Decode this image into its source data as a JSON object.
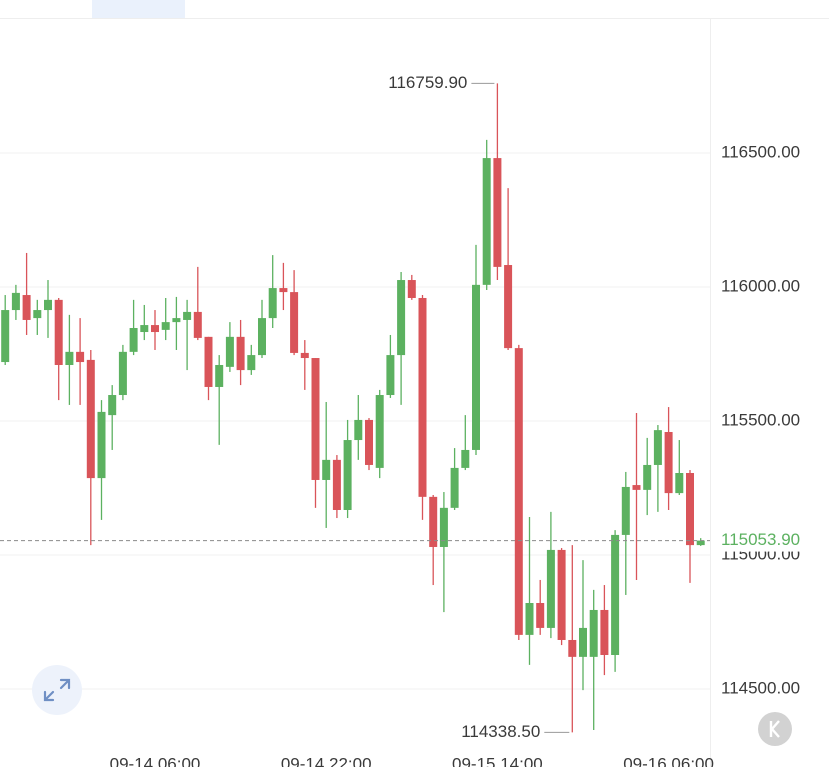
{
  "chart_data": {
    "type": "candlestick",
    "categories": [
      null,
      null,
      null,
      null,
      null,
      null,
      null,
      null,
      null,
      null,
      null,
      null,
      null,
      null,
      "09-14 06:00",
      null,
      null,
      null,
      null,
      null,
      null,
      null,
      null,
      null,
      null,
      null,
      null,
      null,
      null,
      null,
      "09-14 22:00",
      null,
      null,
      null,
      null,
      null,
      null,
      null,
      null,
      null,
      null,
      null,
      null,
      null,
      null,
      null,
      "09-15 14:00",
      null,
      null,
      null,
      null,
      null,
      null,
      null,
      null,
      null,
      null,
      null,
      null,
      null,
      null,
      null,
      "09-16 06:00",
      null,
      null,
      null
    ],
    "open": [
      115720,
      115914,
      115970,
      115884,
      115914,
      115952,
      115709,
      115758,
      115728,
      115287,
      115522,
      115597,
      115758,
      115832,
      115858,
      115840,
      115869,
      115877,
      115907,
      115814,
      115627,
      115702,
      115814,
      115690,
      115746,
      115884,
      115996,
      115981,
      115754,
      115735,
      115280,
      115355,
      115168,
      115429,
      115504,
      115325,
      115597,
      115746,
      116026,
      115959,
      115217,
      115030,
      115176,
      115325,
      115392,
      116008,
      116481,
      116082,
      115772,
      114702,
      114821,
      114728,
      115019,
      114683,
      114620,
      114620,
      114795,
      114627,
      115075,
      115261,
      115243,
      115336,
      115459,
      115231,
      115306,
      115037
    ],
    "high": [
      115970,
      116008,
      116127,
      115952,
      116026,
      115959,
      115896,
      115884,
      115765,
      115578,
      115634,
      115784,
      115952,
      115933,
      115914,
      115959,
      115963,
      115952,
      116075,
      115814,
      115746,
      115869,
      115877,
      115784,
      115952,
      116119,
      116090,
      116063,
      115802,
      115735,
      115571,
      115373,
      115504,
      115597,
      115511,
      115616,
      115821,
      116056,
      116045,
      115970,
      115224,
      115235,
      115399,
      115522,
      116157,
      116549,
      116759.9,
      116369,
      115784,
      115142,
      114907,
      115161,
      115026,
      115037,
      114981,
      114870,
      114888,
      115093,
      115310,
      115530,
      115437,
      115485,
      115552,
      115429,
      115317,
      115063
    ],
    "low": [
      115709,
      115877,
      115821,
      115821,
      115810,
      115578,
      115560,
      115560,
      115037,
      115131,
      115392,
      115578,
      115746,
      115802,
      115765,
      115802,
      115765,
      115690,
      115802,
      115578,
      115411,
      115683,
      115634,
      115672,
      115735,
      115847,
      115914,
      115746,
      115616,
      115176,
      115101,
      115138,
      115138,
      115355,
      115317,
      115287,
      115586,
      115560,
      115952,
      115131,
      114888,
      114787,
      115168,
      115317,
      115373,
      115989,
      116026,
      115765,
      114683,
      114590,
      114702,
      114690,
      114664,
      114338.5,
      114496,
      114347,
      114552,
      114564,
      114851,
      114907,
      115149,
      115161,
      115168,
      115224,
      114896,
      115034
    ],
    "close": [
      115914,
      115978,
      115877,
      115914,
      115952,
      115709,
      115758,
      115720,
      115287,
      115534,
      115597,
      115758,
      115847,
      115858,
      115832,
      115869,
      115884,
      115907,
      115810,
      115627,
      115709,
      115814,
      115690,
      115746,
      115884,
      115996,
      115981,
      115754,
      115735,
      115280,
      115355,
      115168,
      115429,
      115504,
      115336,
      115597,
      115746,
      116026,
      115959,
      115217,
      115030,
      115176,
      115325,
      115392,
      116008,
      116481,
      116075,
      115772,
      114702,
      114821,
      114728,
      115019,
      114683,
      114620,
      114728,
      114795,
      114627,
      115075,
      115254,
      115243,
      115336,
      115466,
      115231,
      115306,
      115037,
      115053.9
    ],
    "up_color": "#5cb160",
    "down_color": "#d95459",
    "ylim": [
      114209.1,
      117070.8
    ],
    "yticks": [
      {
        "value": 114500,
        "label": "114500.00"
      },
      {
        "value": 115000,
        "label": "115000.00"
      },
      {
        "value": 115500,
        "label": "115500.00"
      },
      {
        "value": 116000,
        "label": "116000.00"
      },
      {
        "value": 116500,
        "label": "116500.00"
      }
    ],
    "grid": true,
    "max_label": {
      "value": 116759.9,
      "label": "116759.90"
    },
    "min_label": {
      "value": 114338.5,
      "label": "114338.50"
    },
    "last_price": {
      "value": 115053.9,
      "label": "115053.90"
    }
  }
}
